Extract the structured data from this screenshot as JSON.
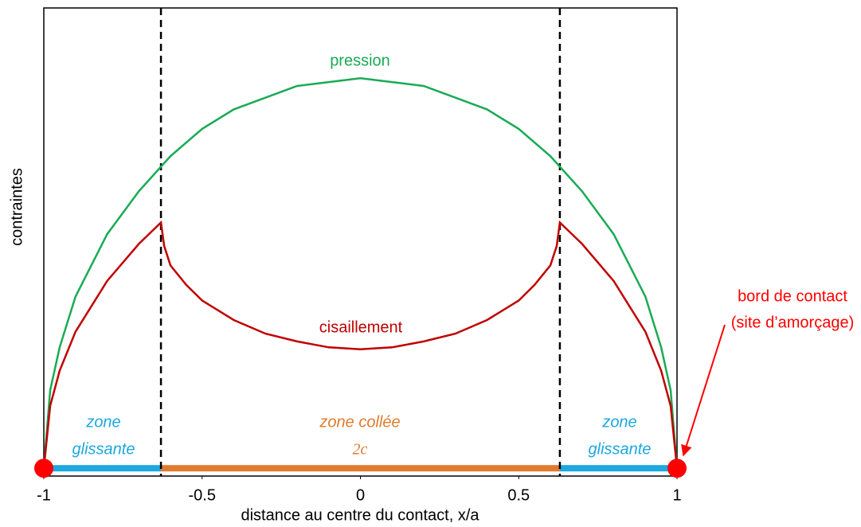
{
  "chart_data": {
    "type": "line",
    "xlabel": "distance au centre du contact, x/a",
    "ylabel": "contraintes",
    "xlim": [
      -1,
      1
    ],
    "ylim": [
      -0.02,
      1.18
    ],
    "xticks": [
      -1,
      -0.5,
      0,
      0.5,
      1
    ],
    "stick_zone_edges": [
      -0.63,
      0.63
    ],
    "series": [
      {
        "name": "pression",
        "color": "#1aaa55",
        "x": [
          -1,
          -0.98,
          -0.95,
          -0.9,
          -0.8,
          -0.7,
          -0.6,
          -0.5,
          -0.4,
          -0.3,
          -0.2,
          -0.1,
          0,
          0.1,
          0.2,
          0.3,
          0.4,
          0.5,
          0.6,
          0.7,
          0.8,
          0.9,
          0.95,
          0.98,
          1
        ],
        "values": [
          0,
          0.2,
          0.31,
          0.44,
          0.6,
          0.71,
          0.8,
          0.87,
          0.92,
          0.95,
          0.98,
          0.99,
          1,
          0.99,
          0.98,
          0.95,
          0.92,
          0.87,
          0.8,
          0.71,
          0.6,
          0.44,
          0.31,
          0.2,
          0
        ]
      },
      {
        "name": "cisaillement",
        "color": "#c00000",
        "x": [
          -1,
          -0.98,
          -0.95,
          -0.9,
          -0.8,
          -0.7,
          -0.63,
          -0.62,
          -0.6,
          -0.55,
          -0.5,
          -0.4,
          -0.3,
          -0.2,
          -0.1,
          0,
          0.1,
          0.2,
          0.3,
          0.4,
          0.5,
          0.55,
          0.6,
          0.62,
          0.63,
          0.7,
          0.8,
          0.9,
          0.95,
          0.98,
          1
        ],
        "values": [
          0,
          0.16,
          0.25,
          0.35,
          0.48,
          0.575,
          0.63,
          0.57,
          0.52,
          0.47,
          0.43,
          0.38,
          0.345,
          0.325,
          0.31,
          0.305,
          0.31,
          0.325,
          0.345,
          0.38,
          0.43,
          0.47,
          0.52,
          0.57,
          0.63,
          0.575,
          0.48,
          0.35,
          0.25,
          0.16,
          0
        ]
      }
    ],
    "left_zone_label": [
      "zone",
      "glissante"
    ],
    "right_zone_label": [
      "zone",
      "glissante"
    ],
    "stick_zone_label": "zone collée",
    "stick_zone_width_label": "2c",
    "edge_annotation": [
      "bord de contact",
      "(site d’amorçage)"
    ]
  }
}
